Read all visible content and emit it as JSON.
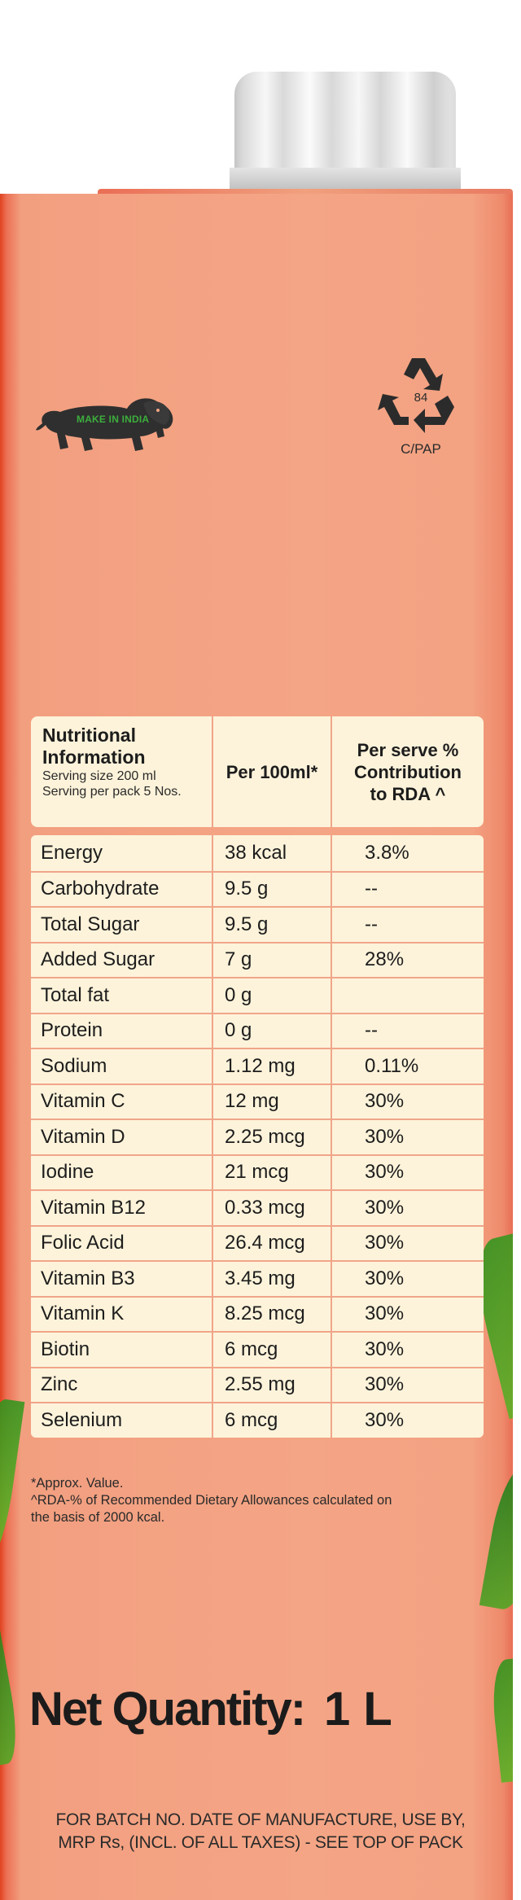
{
  "logo_text": "MAKE IN INDIA",
  "recycle": {
    "number": "84",
    "code": "C/PAP"
  },
  "nutrition": {
    "header": {
      "title_line1": "Nutritional",
      "title_line2": "Information",
      "serving_size": "Serving size 200 ml",
      "serving_per_pack": "Serving per pack 5 Nos.",
      "col_per100": "Per 100ml*",
      "col_rda_line1": "Per serve %",
      "col_rda_line2": "Contribution",
      "col_rda_line3": "to RDA ^"
    },
    "rows": [
      {
        "name": "Energy",
        "per100": "38 kcal",
        "rda": "3.8%"
      },
      {
        "name": "Carbohydrate",
        "per100": "9.5 g",
        "rda": "--"
      },
      {
        "name": "Total Sugar",
        "per100": "9.5 g",
        "rda": "--"
      },
      {
        "name": "Added Sugar",
        "per100": "7 g",
        "rda": "28%"
      },
      {
        "name": "Total fat",
        "per100": "0 g",
        "rda": ""
      },
      {
        "name": "Protein",
        "per100": "0 g",
        "rda": "--"
      },
      {
        "name": "Sodium",
        "per100": "1.12 mg",
        "rda": "0.11%"
      },
      {
        "name": "Vitamin C",
        "per100": "12 mg",
        "rda": "30%"
      },
      {
        "name": "Vitamin D",
        "per100": "2.25 mcg",
        "rda": "30%"
      },
      {
        "name": "Iodine",
        "per100": "21 mcg",
        "rda": "30%"
      },
      {
        "name": "Vitamin B12",
        "per100": "0.33 mcg",
        "rda": "30%"
      },
      {
        "name": "Folic Acid",
        "per100": "26.4 mcg",
        "rda": "30%"
      },
      {
        "name": "Vitamin B3",
        "per100": "3.45 mg",
        "rda": "30%"
      },
      {
        "name": "Vitamin K",
        "per100": "8.25 mcg",
        "rda": "30%"
      },
      {
        "name": "Biotin",
        "per100": "6 mcg",
        "rda": "30%"
      },
      {
        "name": "Zinc",
        "per100": "2.55 mg",
        "rda": "30%"
      },
      {
        "name": "Selenium",
        "per100": "6 mcg",
        "rda": "30%"
      }
    ],
    "footnote1": "*Approx. Value.",
    "footnote2": "^RDA-% of Recommended Dietary Allowances calculated on",
    "footnote3": "the basis of 2000 kcal."
  },
  "net_quantity": {
    "label": "Net Quantity:",
    "value": "1 L"
  },
  "batch_info": {
    "line1": "FOR BATCH NO. DATE OF MANUFACTURE, USE BY,",
    "line2": "MRP Rs, (INCL. OF ALL TAXES) - SEE TOP OF PACK"
  },
  "colors": {
    "carton": "#f4a585",
    "carton_edge": "#e0421f",
    "table_bg": "#fdf3da",
    "table_lines": "#f0a58a",
    "leaf_green": "#4ea524"
  }
}
